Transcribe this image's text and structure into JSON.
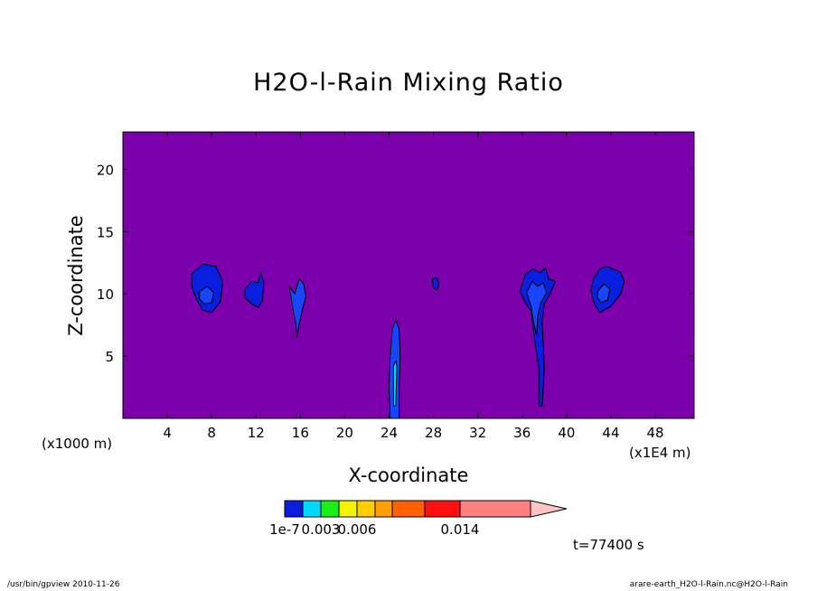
{
  "chart_data": {
    "type": "contour",
    "title": "H2O-l-Rain Mixing Ratio",
    "xlabel": "X-coordinate",
    "ylabel": "Z-coordinate",
    "x_unit_left": "(x1000 m)",
    "x_unit_right": "(x1E4 m)",
    "xlim": [
      0,
      51.5
    ],
    "ylim": [
      0,
      23
    ],
    "x_ticks": [
      4,
      8,
      12,
      16,
      20,
      24,
      28,
      32,
      36,
      40,
      44,
      48
    ],
    "y_ticks": [
      5,
      10,
      15,
      20
    ],
    "background_color": "#7b00ab",
    "colorbar": {
      "colors": [
        "#0a1ee0",
        "#00d8ff",
        "#18f018",
        "#f4f400",
        "#ffcc00",
        "#ffa000",
        "#ff6000",
        "#ff1010",
        "#ff8080"
      ],
      "extend_color": "#ffc4c4",
      "labels": [
        "1e-7",
        "0.003",
        "0.006",
        "0.014"
      ],
      "label_positions": [
        0,
        2,
        4,
        8
      ]
    },
    "features": [
      {
        "name": "cloud-x8",
        "color": "#0a1ee0",
        "points": [
          [
            6.2,
            11.6
          ],
          [
            7.2,
            12.4
          ],
          [
            8.4,
            12.2
          ],
          [
            9.0,
            11.0
          ],
          [
            8.8,
            9.4
          ],
          [
            8.0,
            8.5
          ],
          [
            7.2,
            8.7
          ],
          [
            6.6,
            9.6
          ],
          [
            6.2,
            10.6
          ]
        ]
      },
      {
        "name": "cloud-x8-core",
        "color": "#1846ff",
        "points": [
          [
            6.9,
            10.2
          ],
          [
            7.6,
            10.6
          ],
          [
            8.2,
            10.1
          ],
          [
            8.0,
            9.3
          ],
          [
            7.3,
            9.2
          ],
          [
            6.9,
            9.6
          ]
        ]
      },
      {
        "name": "cloud-x12",
        "color": "#0a1ee0",
        "points": [
          [
            11.0,
            10.4
          ],
          [
            11.6,
            11.0
          ],
          [
            12.2,
            10.9
          ],
          [
            12.4,
            11.7
          ],
          [
            12.7,
            11.0
          ],
          [
            12.6,
            9.5
          ],
          [
            12.2,
            8.9
          ],
          [
            11.6,
            9.2
          ],
          [
            11.0,
            9.7
          ]
        ]
      },
      {
        "name": "cloud-x16",
        "color": "#1846ff",
        "points": [
          [
            15.0,
            10.6
          ],
          [
            15.5,
            10.0
          ],
          [
            15.9,
            11.2
          ],
          [
            16.3,
            10.8
          ],
          [
            16.5,
            9.8
          ],
          [
            16.2,
            8.8
          ],
          [
            15.9,
            7.6
          ],
          [
            15.7,
            6.5
          ],
          [
            15.6,
            7.6
          ],
          [
            15.3,
            8.9
          ]
        ]
      },
      {
        "name": "cloud-x28",
        "color": "#0a1ee0",
        "points": [
          [
            27.9,
            11.2
          ],
          [
            28.3,
            11.3
          ],
          [
            28.5,
            10.8
          ],
          [
            28.3,
            10.3
          ],
          [
            28.0,
            10.5
          ]
        ]
      },
      {
        "name": "column-x24",
        "color": "#1846ff",
        "points": [
          [
            24.1,
            0.0
          ],
          [
            24.0,
            2.5
          ],
          [
            24.1,
            5.0
          ],
          [
            24.3,
            7.2
          ],
          [
            24.6,
            7.9
          ],
          [
            24.9,
            7.2
          ],
          [
            25.0,
            5.0
          ],
          [
            24.9,
            2.5
          ],
          [
            24.9,
            0.0
          ]
        ]
      },
      {
        "name": "column-x24-core",
        "color": "#00d8ff",
        "points": [
          [
            24.4,
            1.0
          ],
          [
            24.4,
            4.2
          ],
          [
            24.6,
            4.6
          ],
          [
            24.7,
            4.2
          ],
          [
            24.6,
            1.0
          ]
        ]
      },
      {
        "name": "cloud-x37",
        "color": "#0a1ee0",
        "points": [
          [
            35.8,
            10.2
          ],
          [
            36.3,
            11.6
          ],
          [
            37.0,
            12.0
          ],
          [
            37.6,
            11.7
          ],
          [
            38.1,
            12.1
          ],
          [
            38.4,
            11.2
          ],
          [
            39.0,
            11.0
          ],
          [
            38.5,
            10.0
          ],
          [
            38.0,
            9.2
          ],
          [
            37.8,
            7.8
          ],
          [
            37.9,
            6.0
          ],
          [
            38.0,
            4.0
          ],
          [
            37.8,
            1.0
          ],
          [
            37.5,
            1.0
          ],
          [
            37.5,
            4.0
          ],
          [
            37.2,
            5.8
          ],
          [
            37.0,
            7.2
          ],
          [
            36.8,
            8.6
          ],
          [
            36.2,
            9.4
          ]
        ]
      },
      {
        "name": "cloud-x37-core",
        "color": "#1846ff",
        "points": [
          [
            36.4,
            10.1
          ],
          [
            36.9,
            11.0
          ],
          [
            37.4,
            10.6
          ],
          [
            37.9,
            10.9
          ],
          [
            38.2,
            10.1
          ],
          [
            37.7,
            9.3
          ],
          [
            37.4,
            8.2
          ],
          [
            37.3,
            6.7
          ],
          [
            37.0,
            7.8
          ],
          [
            36.8,
            9.0
          ]
        ]
      },
      {
        "name": "cloud-x44",
        "color": "#0a1ee0",
        "points": [
          [
            42.4,
            11.2
          ],
          [
            43.0,
            12.0
          ],
          [
            43.6,
            12.2
          ],
          [
            44.2,
            12.0
          ],
          [
            44.9,
            11.7
          ],
          [
            45.2,
            11.0
          ],
          [
            44.9,
            10.0
          ],
          [
            44.0,
            9.0
          ],
          [
            43.0,
            8.5
          ],
          [
            42.5,
            9.2
          ],
          [
            42.2,
            10.2
          ]
        ]
      },
      {
        "name": "cloud-x44-core",
        "color": "#1846ff",
        "points": [
          [
            42.8,
            10.2
          ],
          [
            43.4,
            10.8
          ],
          [
            43.9,
            10.4
          ],
          [
            43.7,
            9.5
          ],
          [
            43.1,
            9.3
          ],
          [
            42.8,
            9.7
          ]
        ]
      }
    ]
  },
  "annotations": {
    "time": "t=77400 s",
    "footer_left": "/usr/bin/gpview  2010-11-26",
    "footer_right": "arare-earth_H2O-l-Rain.nc@H2O-l-Rain"
  }
}
